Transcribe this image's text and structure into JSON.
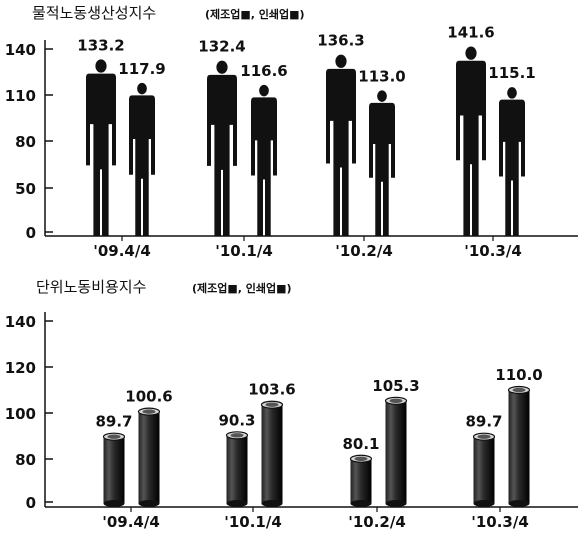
{
  "chart_data": [
    {
      "type": "bar",
      "title": "물적노동생산성지수",
      "legend_note": "(제조업■, 인쇄업■)",
      "categories": [
        "'09.4/4",
        "'10.1/4",
        "'10.2/4",
        "'10.3/4"
      ],
      "yticks": [
        0,
        50,
        80,
        110,
        140
      ],
      "series": [
        {
          "name": "제조업",
          "values": [
            133.2,
            132.4,
            136.3,
            141.6
          ]
        },
        {
          "name": "인쇄업",
          "values": [
            117.9,
            116.6,
            113.0,
            115.1
          ]
        }
      ],
      "value_labels": [
        [
          "133.2",
          "132.4",
          "136.3",
          "141.6"
        ],
        [
          "117.9",
          "116.6",
          "113.0",
          "115.1"
        ]
      ],
      "color": "#111111"
    },
    {
      "type": "bar",
      "title": "단위노동비용지수",
      "legend_note": "(제조업■, 인쇄업■)",
      "categories": [
        "'09.4/4",
        "'10.1/4",
        "'10.2/4",
        "'10.3/4"
      ],
      "yticks": [
        0,
        80,
        100,
        120,
        140
      ],
      "series": [
        {
          "name": "제조업",
          "values": [
            89.7,
            90.3,
            80.1,
            89.7
          ]
        },
        {
          "name": "인쇄업",
          "values": [
            100.6,
            103.6,
            105.3,
            110.0
          ]
        }
      ],
      "value_labels": [
        [
          "89.7",
          "90.3",
          "80.1",
          "89.7"
        ],
        [
          "100.6",
          "103.6",
          "105.3",
          "110.0"
        ]
      ],
      "color": "#111111"
    }
  ]
}
